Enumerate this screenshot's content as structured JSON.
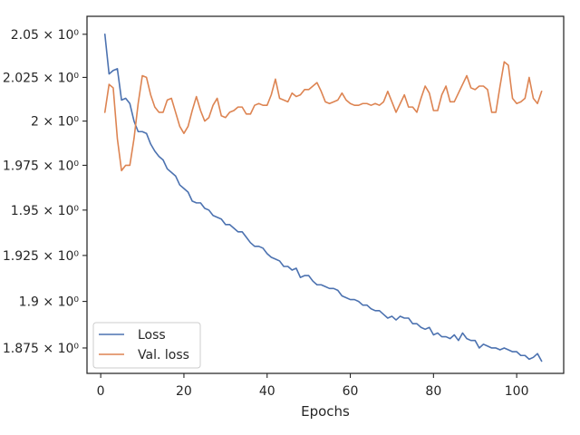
{
  "chart_data": {
    "type": "line",
    "title": "",
    "xlabel": "Epochs",
    "ylabel": "",
    "xlim": [
      -3.3,
      111.3
    ],
    "ylim": [
      1.8615,
      2.0605
    ],
    "y_scale": "log",
    "grid": false,
    "legend_position": "lower-left",
    "x_ticks": [
      0,
      20,
      40,
      60,
      80,
      100
    ],
    "x_tick_labels": [
      "0",
      "20",
      "40",
      "60",
      "80",
      "100"
    ],
    "y_ticks": [
      1.875,
      1.9,
      1.925,
      1.95,
      1.975,
      2.0,
      2.025,
      2.05
    ],
    "y_tick_labels": [
      "1.875 × 10⁰",
      "1.9 × 10⁰",
      "1.925 × 10⁰",
      "1.95 × 10⁰",
      "1.975 × 10⁰",
      "2 × 10⁰",
      "2.025 × 10⁰",
      "2.05 × 10⁰"
    ],
    "x_start": 1,
    "series": [
      {
        "name": "Loss",
        "color": "#4c72b0",
        "values": [
          2.05,
          2.027,
          2.029,
          2.03,
          2.012,
          2.013,
          2.01,
          2.0,
          1.994,
          1.994,
          1.993,
          1.987,
          1.983,
          1.98,
          1.978,
          1.973,
          1.971,
          1.969,
          1.964,
          1.962,
          1.96,
          1.955,
          1.954,
          1.954,
          1.951,
          1.95,
          1.947,
          1.946,
          1.945,
          1.942,
          1.942,
          1.94,
          1.938,
          1.938,
          1.935,
          1.932,
          1.93,
          1.93,
          1.929,
          1.926,
          1.924,
          1.923,
          1.922,
          1.919,
          1.919,
          1.917,
          1.918,
          1.913,
          1.914,
          1.914,
          1.911,
          1.909,
          1.909,
          1.908,
          1.907,
          1.907,
          1.906,
          1.903,
          1.902,
          1.901,
          1.901,
          1.9,
          1.898,
          1.898,
          1.896,
          1.895,
          1.895,
          1.893,
          1.891,
          1.892,
          1.89,
          1.892,
          1.891,
          1.891,
          1.888,
          1.888,
          1.886,
          1.885,
          1.886,
          1.882,
          1.883,
          1.881,
          1.881,
          1.88,
          1.882,
          1.879,
          1.883,
          1.88,
          1.879,
          1.879,
          1.875,
          1.877,
          1.876,
          1.875,
          1.875,
          1.874,
          1.875,
          1.874,
          1.873,
          1.873,
          1.871,
          1.871,
          1.869,
          1.87,
          1.872,
          1.868
        ]
      },
      {
        "name": "Val. loss",
        "color": "#dd8452",
        "values": [
          2.005,
          2.021,
          2.019,
          1.99,
          1.972,
          1.975,
          1.975,
          1.99,
          2.01,
          2.026,
          2.025,
          2.015,
          2.008,
          2.005,
          2.005,
          2.012,
          2.013,
          2.005,
          1.997,
          1.993,
          1.997,
          2.006,
          2.014,
          2.006,
          2.0,
          2.002,
          2.009,
          2.013,
          2.003,
          2.002,
          2.005,
          2.006,
          2.008,
          2.008,
          2.004,
          2.004,
          2.009,
          2.01,
          2.009,
          2.009,
          2.015,
          2.024,
          2.013,
          2.012,
          2.011,
          2.016,
          2.014,
          2.015,
          2.018,
          2.018,
          2.02,
          2.022,
          2.017,
          2.011,
          2.01,
          2.011,
          2.012,
          2.016,
          2.012,
          2.01,
          2.009,
          2.009,
          2.01,
          2.01,
          2.009,
          2.01,
          2.009,
          2.011,
          2.017,
          2.011,
          2.005,
          2.01,
          2.015,
          2.008,
          2.008,
          2.005,
          2.013,
          2.02,
          2.016,
          2.006,
          2.006,
          2.015,
          2.02,
          2.011,
          2.011,
          2.016,
          2.021,
          2.026,
          2.019,
          2.018,
          2.02,
          2.02,
          2.018,
          2.005,
          2.005,
          2.02,
          2.034,
          2.032,
          2.013,
          2.01,
          2.011,
          2.013,
          2.025,
          2.013,
          2.01,
          2.017
        ]
      }
    ]
  }
}
